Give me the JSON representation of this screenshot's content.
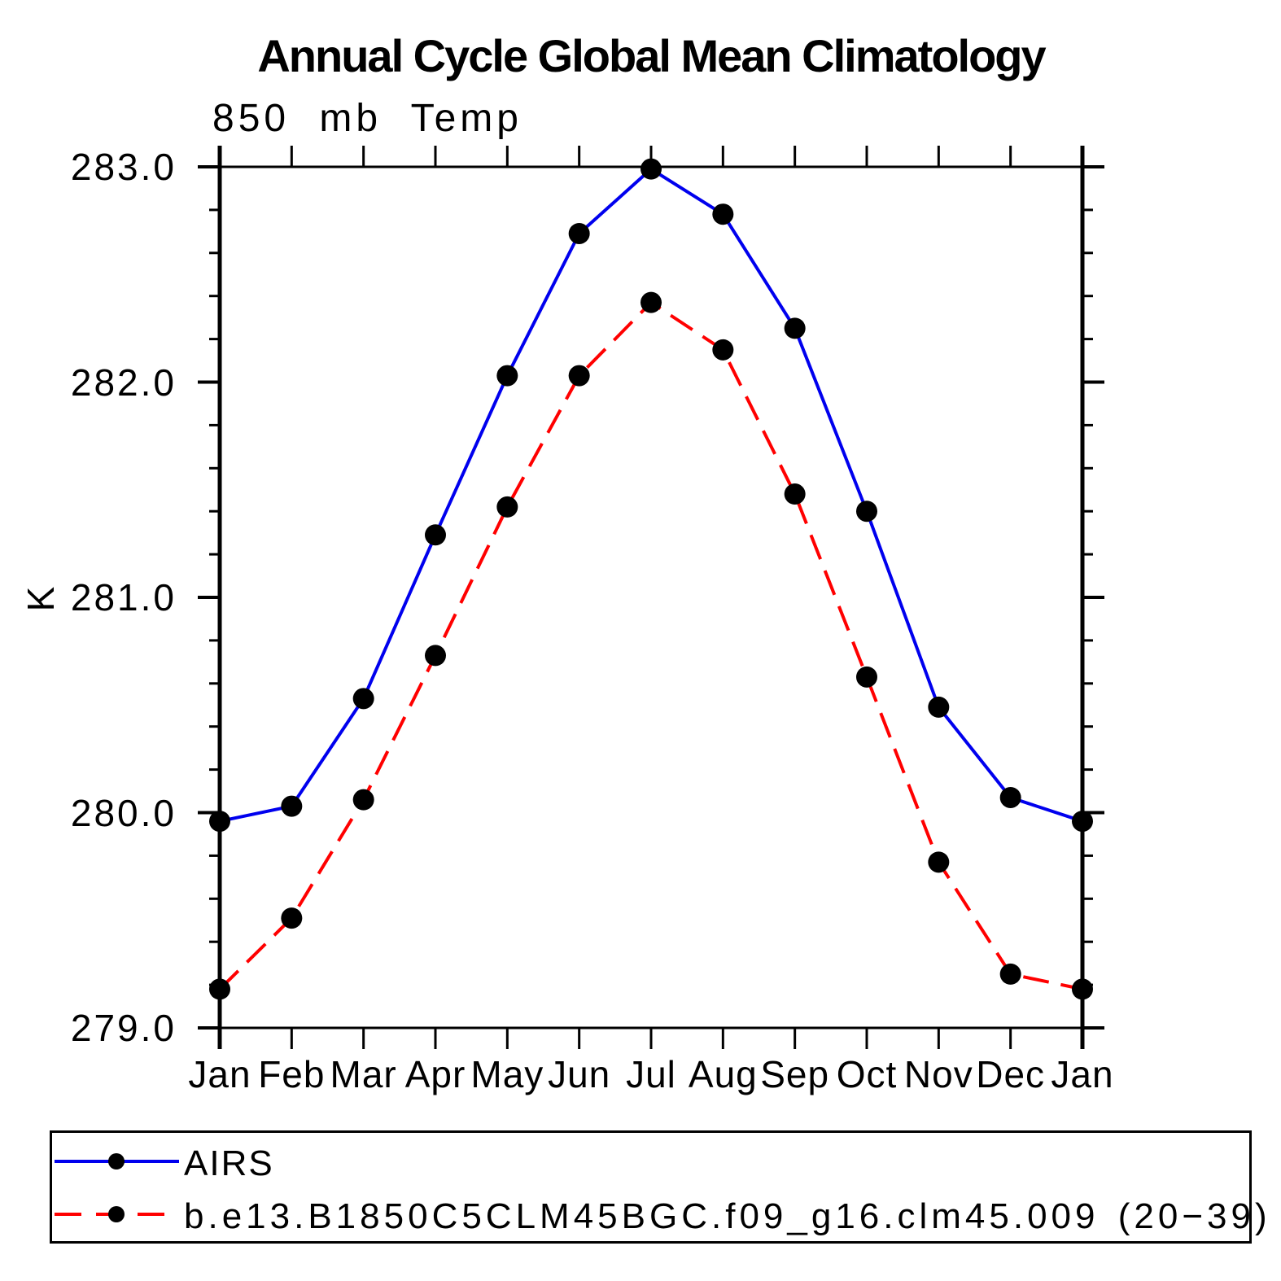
{
  "header": {
    "title": "Annual Cycle Global Mean Climatology",
    "subtitle": "850 mb Temp"
  },
  "axes": {
    "ylabel": "K",
    "ytick_labels": [
      "283.0",
      "282.0",
      "281.0",
      "280.0",
      "279.0"
    ],
    "xtick_labels": [
      "Jan",
      "Feb",
      "Mar",
      "Apr",
      "May",
      "Jun",
      "Jul",
      "Aug",
      "Sep",
      "Oct",
      "Nov",
      "Dec",
      "Jan"
    ]
  },
  "legend": {
    "entries": [
      {
        "label": "AIRS",
        "color": "#0000ee",
        "line_style": "solid",
        "marker": "filled-circle",
        "marker_color": "#000000"
      },
      {
        "label": "b.e13.B1850C5CLM45BGC.f09_g16.clm45.009 (20−39)",
        "color": "#ff0000",
        "line_style": "dashed",
        "marker": "filled-circle",
        "marker_color": "#000000"
      }
    ]
  },
  "chart_data": {
    "type": "line",
    "title": "Annual Cycle Global Mean Climatology",
    "subtitle": "850 mb Temp",
    "xlabel": "",
    "ylabel": "K",
    "categories": [
      "Jan",
      "Feb",
      "Mar",
      "Apr",
      "May",
      "Jun",
      "Jul",
      "Aug",
      "Sep",
      "Oct",
      "Nov",
      "Dec",
      "Jan"
    ],
    "series": [
      {
        "name": "AIRS",
        "color": "#0000ee",
        "line_style": "solid",
        "marker": "filled-circle",
        "marker_color": "#000000",
        "values": [
          279.96,
          280.03,
          280.53,
          281.29,
          282.03,
          282.69,
          282.99,
          282.78,
          282.25,
          281.4,
          280.49,
          280.07,
          279.96
        ]
      },
      {
        "name": "b.e13.B1850C5CLM45BGC.f09_g16.clm45.009 (20−39)",
        "color": "#ff0000",
        "line_style": "dashed",
        "marker": "filled-circle",
        "marker_color": "#000000",
        "values": [
          279.18,
          279.51,
          280.06,
          280.73,
          281.42,
          282.03,
          282.37,
          282.15,
          281.48,
          280.63,
          279.77,
          279.25,
          279.18
        ]
      }
    ],
    "ylim": [
      279.0,
      283.0
    ],
    "ytick_step": 1.0,
    "yminor_step": 0.2,
    "grid": false,
    "legend_position": "bottom",
    "axis_color": "#000000"
  }
}
